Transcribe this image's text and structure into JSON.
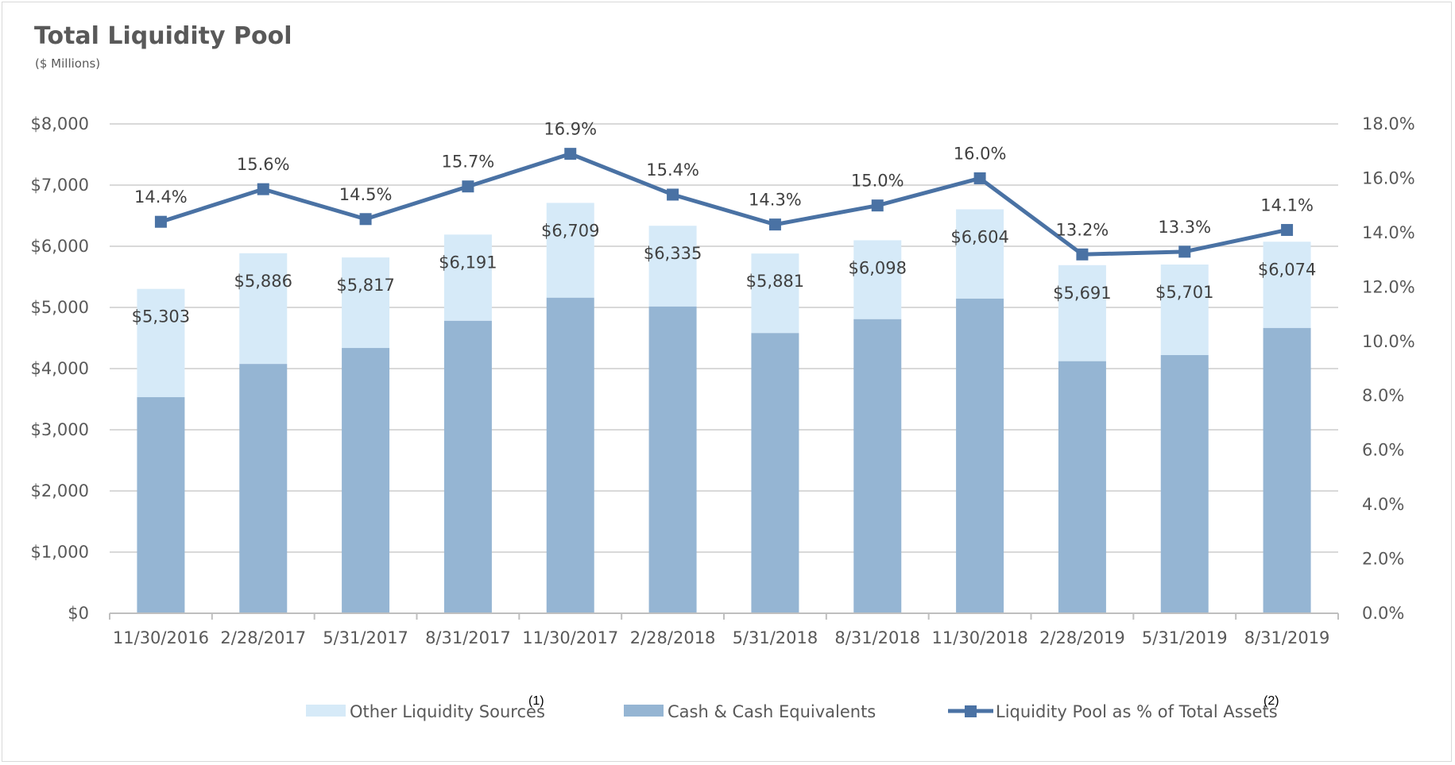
{
  "chart_data": {
    "type": "bar",
    "title": "Total Liquidity Pool",
    "subtitle": "($ Millions)",
    "categories": [
      "11/30/2016",
      "2/28/2017",
      "5/31/2017",
      "8/31/2017",
      "11/30/2017",
      "2/28/2018",
      "5/31/2018",
      "8/31/2018",
      "11/30/2018",
      "2/28/2019",
      "5/31/2019",
      "8/31/2019"
    ],
    "series": [
      {
        "name": "Other Liquidity Sources",
        "footnote": "(1)",
        "values": [
          1770,
          1810,
          1480,
          1410,
          1550,
          1320,
          1300,
          1290,
          1460,
          1570,
          1480,
          1410
        ],
        "color": "#d6eaf8"
      },
      {
        "name": "Cash & Cash Equivalents",
        "values": [
          3533,
          4076,
          4337,
          4781,
          5159,
          5015,
          4581,
          4808,
          5144,
          4121,
          4221,
          4664
        ],
        "color": "#95b5d3"
      },
      {
        "name": "Liquidity Pool as % of Total Assets",
        "footnote": "(2)",
        "values": [
          14.4,
          15.6,
          14.5,
          15.7,
          16.9,
          15.4,
          14.3,
          15.0,
          16.0,
          13.2,
          13.3,
          14.1
        ],
        "labels": [
          "14.4%",
          "15.6%",
          "14.5%",
          "15.7%",
          "16.9%",
          "15.4%",
          "14.3%",
          "15.0%",
          "16.0%",
          "13.2%",
          "13.3%",
          "14.1%"
        ],
        "color": "#4a72a4",
        "axis": "secondary"
      }
    ],
    "totals": [
      5303,
      5886,
      5817,
      6191,
      6709,
      6335,
      5881,
      6098,
      6604,
      5691,
      5701,
      6074
    ],
    "total_labels": [
      "$5,303",
      "$5,886",
      "$5,817",
      "$6,191",
      "$6,709",
      "$6,335",
      "$5,881",
      "$6,098",
      "$6,604",
      "$5,691",
      "$5,701",
      "$6,074"
    ],
    "ylim": [
      0,
      8000
    ],
    "yticks": [
      "$0",
      "$1,000",
      "$2,000",
      "$3,000",
      "$4,000",
      "$5,000",
      "$6,000",
      "$7,000",
      "$8,000"
    ],
    "y2lim": [
      0,
      18
    ],
    "y2ticks": [
      "0.0%",
      "2.0%",
      "4.0%",
      "6.0%",
      "8.0%",
      "10.0%",
      "12.0%",
      "14.0%",
      "16.0%",
      "18.0%"
    ],
    "grid": true,
    "legend_position": "bottom",
    "gridline_color": "#d9d9d9"
  }
}
